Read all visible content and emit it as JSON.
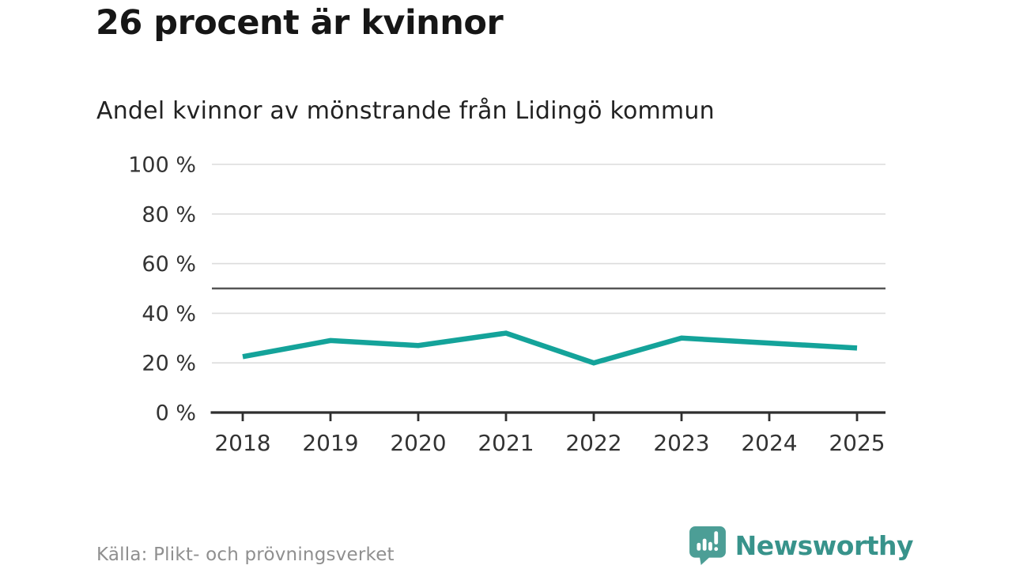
{
  "header": {
    "title": "26 procent är kvinnor",
    "subtitle": "Andel kvinnor av mönstrande från Lidingö kommun"
  },
  "footer": {
    "source": "Källa: Plikt- och prövningsverket",
    "logo_text": "Newsworthy",
    "logo_icon": "bar-chart-speech-bubble-icon"
  },
  "colors": {
    "line": "#14a39a",
    "grid": "#dcdcdc",
    "reference": "#555555",
    "axis": "#2f2f2f",
    "tick_label": "#333333",
    "title_text": "#161616",
    "source_text": "#8f8f8f",
    "logo_bubble": "#4c9e96",
    "logo_text": "#38938b"
  },
  "chart_data": {
    "type": "line",
    "title": "26 procent är kvinnor",
    "subtitle": "Andel kvinnor av mönstrande från Lidingö kommun",
    "x": [
      "2018",
      "2019",
      "2020",
      "2021",
      "2022",
      "2023",
      "2024",
      "2025"
    ],
    "series": [
      {
        "name": "Andel kvinnor av mönstrande",
        "color": "#14a39a",
        "values": [
          22.5,
          29,
          27,
          32,
          20,
          30,
          28,
          26
        ]
      }
    ],
    "ylim": [
      0,
      100
    ],
    "yticks": [
      {
        "value": 0,
        "label": "0 %"
      },
      {
        "value": 20,
        "label": "20 %"
      },
      {
        "value": 40,
        "label": "40 %"
      },
      {
        "value": 60,
        "label": "60 %"
      },
      {
        "value": 80,
        "label": "80 %"
      },
      {
        "value": 100,
        "label": "100 %"
      }
    ],
    "reference_line": {
      "value": 50
    },
    "grid": true,
    "legend": "none",
    "source": "Källa: Plikt- och prövningsverket"
  }
}
